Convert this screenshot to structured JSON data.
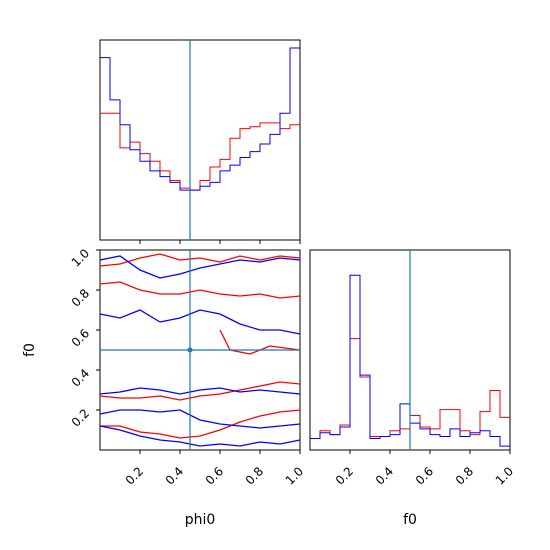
{
  "chart_data": [
    {
      "type": "histogram",
      "panel": "phi0-marginal",
      "x_range": [
        0,
        1
      ],
      "bin_edges": [
        0.0,
        0.05,
        0.1,
        0.15,
        0.2,
        0.25,
        0.3,
        0.35,
        0.4,
        0.45,
        0.5,
        0.55,
        0.6,
        0.65,
        0.7,
        0.75,
        0.8,
        0.85,
        0.9,
        0.95,
        1.0
      ],
      "truth": 0.45,
      "truth_color": "#1f77b4",
      "series": [
        {
          "color": "#ff0000",
          "counts": [
            0.66,
            0.66,
            0.48,
            0.51,
            0.45,
            0.41,
            0.36,
            0.31,
            0.27,
            0.26,
            0.31,
            0.38,
            0.42,
            0.53,
            0.58,
            0.59,
            0.61,
            0.61,
            0.58,
            0.6
          ]
        },
        {
          "color": "#0000ff",
          "counts": [
            0.95,
            0.73,
            0.6,
            0.47,
            0.41,
            0.36,
            0.33,
            0.3,
            0.26,
            0.26,
            0.28,
            0.3,
            0.36,
            0.39,
            0.43,
            0.46,
            0.5,
            0.55,
            0.66,
            1.0
          ]
        }
      ]
    },
    {
      "type": "contour",
      "panel": "phi0-f0-joint",
      "xlabel": "phi0",
      "ylabel": "f0",
      "xlim": [
        0,
        1
      ],
      "ylim": [
        0,
        1
      ],
      "x_ticks": [
        "0.2",
        "0.4",
        "0.6",
        "0.8",
        "1.0"
      ],
      "y_ticks": [
        "0.2",
        "0.4",
        "0.6",
        "0.8",
        "1.0"
      ],
      "truth": {
        "x": 0.45,
        "y": 0.5
      },
      "truth_color": "#1f77b4",
      "series": [
        {
          "color": "#ff0000",
          "levels": [
            [
              [
                0,
                0.92
              ],
              [
                0.1,
                0.93
              ],
              [
                0.2,
                0.96
              ],
              [
                0.3,
                0.98
              ],
              [
                0.4,
                0.95
              ],
              [
                0.5,
                0.96
              ],
              [
                0.6,
                0.94
              ],
              [
                0.7,
                0.97
              ],
              [
                0.8,
                0.95
              ],
              [
                0.9,
                0.97
              ],
              [
                1.0,
                0.96
              ]
            ],
            [
              [
                0,
                0.83
              ],
              [
                0.1,
                0.84
              ],
              [
                0.2,
                0.8
              ],
              [
                0.3,
                0.78
              ],
              [
                0.4,
                0.78
              ],
              [
                0.5,
                0.8
              ],
              [
                0.6,
                0.78
              ],
              [
                0.7,
                0.77
              ],
              [
                0.8,
                0.78
              ],
              [
                0.9,
                0.76
              ],
              [
                1.0,
                0.77
              ]
            ],
            [
              [
                0,
                0.27
              ],
              [
                0.1,
                0.26
              ],
              [
                0.2,
                0.26
              ],
              [
                0.3,
                0.27
              ],
              [
                0.4,
                0.25
              ],
              [
                0.5,
                0.27
              ],
              [
                0.6,
                0.28
              ],
              [
                0.7,
                0.3
              ],
              [
                0.8,
                0.32
              ],
              [
                0.9,
                0.34
              ],
              [
                1.0,
                0.33
              ]
            ],
            [
              [
                0,
                0.12
              ],
              [
                0.1,
                0.12
              ],
              [
                0.2,
                0.09
              ],
              [
                0.3,
                0.08
              ],
              [
                0.4,
                0.06
              ],
              [
                0.5,
                0.07
              ],
              [
                0.6,
                0.1
              ],
              [
                0.7,
                0.14
              ],
              [
                0.8,
                0.17
              ],
              [
                0.9,
                0.19
              ],
              [
                1.0,
                0.2
              ]
            ],
            [
              [
                0.6,
                0.6
              ],
              [
                0.65,
                0.5
              ],
              [
                0.75,
                0.48
              ],
              [
                0.85,
                0.52
              ],
              [
                1.0,
                0.5
              ]
            ]
          ]
        },
        {
          "color": "#0000ff",
          "levels": [
            [
              [
                0,
                0.95
              ],
              [
                0.1,
                0.97
              ],
              [
                0.2,
                0.9
              ],
              [
                0.3,
                0.86
              ],
              [
                0.4,
                0.88
              ],
              [
                0.5,
                0.91
              ],
              [
                0.6,
                0.93
              ],
              [
                0.7,
                0.95
              ],
              [
                0.8,
                0.94
              ],
              [
                0.9,
                0.96
              ],
              [
                1.0,
                0.95
              ]
            ],
            [
              [
                0,
                0.68
              ],
              [
                0.1,
                0.66
              ],
              [
                0.2,
                0.7
              ],
              [
                0.3,
                0.64
              ],
              [
                0.4,
                0.66
              ],
              [
                0.5,
                0.7
              ],
              [
                0.6,
                0.68
              ],
              [
                0.7,
                0.63
              ],
              [
                0.8,
                0.6
              ],
              [
                0.9,
                0.6
              ],
              [
                1.0,
                0.58
              ]
            ],
            [
              [
                0,
                0.28
              ],
              [
                0.1,
                0.29
              ],
              [
                0.2,
                0.31
              ],
              [
                0.3,
                0.3
              ],
              [
                0.4,
                0.28
              ],
              [
                0.5,
                0.3
              ],
              [
                0.6,
                0.31
              ],
              [
                0.7,
                0.29
              ],
              [
                0.8,
                0.3
              ],
              [
                0.9,
                0.29
              ],
              [
                1.0,
                0.28
              ]
            ],
            [
              [
                0,
                0.18
              ],
              [
                0.1,
                0.2
              ],
              [
                0.2,
                0.2
              ],
              [
                0.3,
                0.19
              ],
              [
                0.4,
                0.2
              ],
              [
                0.5,
                0.15
              ],
              [
                0.6,
                0.13
              ],
              [
                0.7,
                0.12
              ],
              [
                0.8,
                0.11
              ],
              [
                0.9,
                0.12
              ],
              [
                1.0,
                0.13
              ]
            ],
            [
              [
                0,
                0.12
              ],
              [
                0.1,
                0.1
              ],
              [
                0.2,
                0.07
              ],
              [
                0.3,
                0.05
              ],
              [
                0.4,
                0.04
              ],
              [
                0.5,
                0.02
              ],
              [
                0.6,
                0.03
              ],
              [
                0.7,
                0.02
              ],
              [
                0.8,
                0.04
              ],
              [
                0.9,
                0.03
              ],
              [
                1.0,
                0.05
              ]
            ]
          ]
        }
      ]
    },
    {
      "type": "histogram",
      "panel": "f0-marginal",
      "xlabel": "f0",
      "x_range": [
        0,
        1
      ],
      "x_ticks": [
        "0.2",
        "0.4",
        "0.6",
        "0.8",
        "1.0"
      ],
      "bin_edges": [
        0.0,
        0.05,
        0.1,
        0.15,
        0.2,
        0.25,
        0.3,
        0.35,
        0.4,
        0.45,
        0.5,
        0.55,
        0.6,
        0.65,
        0.7,
        0.75,
        0.8,
        0.85,
        0.9,
        0.95,
        1.0
      ],
      "truth": 0.5,
      "truth_color": "#1f77b4",
      "series": [
        {
          "color": "#ff0000",
          "counts": [
            0.06,
            0.1,
            0.08,
            0.13,
            0.58,
            0.38,
            0.07,
            0.07,
            0.1,
            0.11,
            0.18,
            0.12,
            0.11,
            0.21,
            0.21,
            0.1,
            0.08,
            0.2,
            0.31,
            0.17
          ]
        },
        {
          "color": "#0000ff",
          "counts": [
            0.06,
            0.09,
            0.08,
            0.12,
            0.91,
            0.39,
            0.06,
            0.07,
            0.08,
            0.24,
            0.14,
            0.11,
            0.08,
            0.07,
            0.11,
            0.07,
            0.09,
            0.1,
            0.07,
            0.02
          ]
        }
      ]
    }
  ]
}
